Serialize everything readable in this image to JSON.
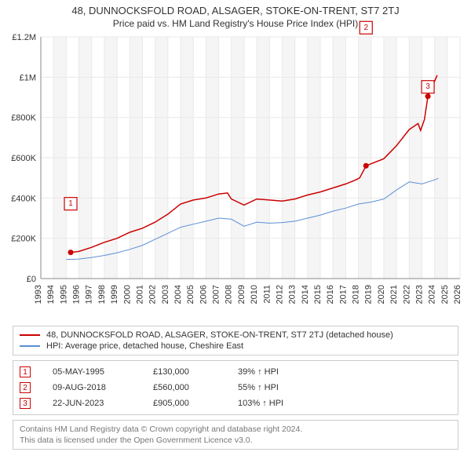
{
  "title_main": "48, DUNNOCKSFOLD ROAD, ALSAGER, STOKE-ON-TRENT, ST7 2TJ",
  "title_sub": "Price paid vs. HM Land Registry's House Price Index (HPI)",
  "chart": {
    "type": "line",
    "background_color": "#ffffff",
    "zebra_color": "#f5f5f5",
    "grid_color": "#e9e9e9",
    "axis_color": "#888888",
    "label_color": "#333333",
    "label_fontsize": 11,
    "x_years": [
      1993,
      1994,
      1995,
      1996,
      1997,
      1998,
      1999,
      2000,
      2001,
      2002,
      2003,
      2004,
      2005,
      2006,
      2007,
      2008,
      2009,
      2010,
      2011,
      2012,
      2013,
      2014,
      2015,
      2016,
      2017,
      2018,
      2019,
      2020,
      2021,
      2022,
      2023,
      2024,
      2025,
      2026
    ],
    "ylim": [
      0,
      1200000
    ],
    "ytick_step": 200000,
    "ytick_labels": [
      "£0",
      "£200K",
      "£400K",
      "£600K",
      "£800K",
      "£1M",
      "£1.2M"
    ],
    "series_price": {
      "color": "#cc0000",
      "points": [
        [
          1995.35,
          130000
        ],
        [
          1996,
          135000
        ],
        [
          1997,
          155000
        ],
        [
          1998,
          180000
        ],
        [
          1999,
          200000
        ],
        [
          2000,
          230000
        ],
        [
          2001,
          250000
        ],
        [
          2002,
          280000
        ],
        [
          2003,
          320000
        ],
        [
          2004,
          370000
        ],
        [
          2005,
          390000
        ],
        [
          2006,
          400000
        ],
        [
          2007,
          420000
        ],
        [
          2007.7,
          425000
        ],
        [
          2008,
          395000
        ],
        [
          2009,
          365000
        ],
        [
          2010,
          395000
        ],
        [
          2011,
          390000
        ],
        [
          2012,
          385000
        ],
        [
          2013,
          395000
        ],
        [
          2014,
          415000
        ],
        [
          2015,
          430000
        ],
        [
          2016,
          450000
        ],
        [
          2017,
          470000
        ],
        [
          2017.8,
          490000
        ],
        [
          2018.1,
          500000
        ],
        [
          2018.6,
          560000
        ],
        [
          2019,
          570000
        ],
        [
          2020,
          595000
        ],
        [
          2021,
          660000
        ],
        [
          2022,
          740000
        ],
        [
          2022.7,
          770000
        ],
        [
          2022.9,
          735000
        ],
        [
          2023.2,
          790000
        ],
        [
          2023.47,
          905000
        ],
        [
          2023.8,
          950000
        ],
        [
          2024.2,
          1010000
        ]
      ]
    },
    "series_hpi": {
      "color": "#5b8fd6",
      "points": [
        [
          1995,
          95000
        ],
        [
          1996,
          97000
        ],
        [
          1997,
          105000
        ],
        [
          1998,
          115000
        ],
        [
          1999,
          128000
        ],
        [
          2000,
          145000
        ],
        [
          2001,
          165000
        ],
        [
          2002,
          195000
        ],
        [
          2003,
          225000
        ],
        [
          2004,
          255000
        ],
        [
          2005,
          270000
        ],
        [
          2006,
          285000
        ],
        [
          2007,
          300000
        ],
        [
          2008,
          295000
        ],
        [
          2009,
          260000
        ],
        [
          2010,
          280000
        ],
        [
          2011,
          275000
        ],
        [
          2012,
          278000
        ],
        [
          2013,
          285000
        ],
        [
          2014,
          300000
        ],
        [
          2015,
          315000
        ],
        [
          2016,
          335000
        ],
        [
          2017,
          350000
        ],
        [
          2018,
          370000
        ],
        [
          2019,
          380000
        ],
        [
          2020,
          395000
        ],
        [
          2021,
          440000
        ],
        [
          2022,
          480000
        ],
        [
          2023,
          470000
        ],
        [
          2024,
          490000
        ],
        [
          2024.3,
          498000
        ]
      ]
    },
    "markers": [
      {
        "n": "1",
        "year": 1995.35,
        "value": 130000,
        "label_dy": -62,
        "color": "#cc0000"
      },
      {
        "n": "2",
        "year": 2018.6,
        "value": 560000,
        "label_dy": -176,
        "color": "#cc0000"
      },
      {
        "n": "3",
        "year": 2023.47,
        "value": 905000,
        "label_dy": -12,
        "color": "#cc0000"
      }
    ]
  },
  "legend": {
    "rows": [
      {
        "color": "#cc0000",
        "label": "48, DUNNOCKSFOLD ROAD, ALSAGER, STOKE-ON-TRENT, ST7 2TJ (detached house)"
      },
      {
        "color": "#5b8fd6",
        "label": "HPI: Average price, detached house, Cheshire East"
      }
    ]
  },
  "sales": {
    "rows": [
      {
        "n": "1",
        "date": "05-MAY-1995",
        "price": "£130,000",
        "pct": "39% ↑ HPI",
        "color": "#cc0000"
      },
      {
        "n": "2",
        "date": "09-AUG-2018",
        "price": "£560,000",
        "pct": "55% ↑ HPI",
        "color": "#cc0000"
      },
      {
        "n": "3",
        "date": "22-JUN-2023",
        "price": "£905,000",
        "pct": "103% ↑ HPI",
        "color": "#cc0000"
      }
    ]
  },
  "credit": {
    "line1": "Contains HM Land Registry data © Crown copyright and database right 2024.",
    "line2": "This data is licensed under the Open Government Licence v3.0."
  }
}
